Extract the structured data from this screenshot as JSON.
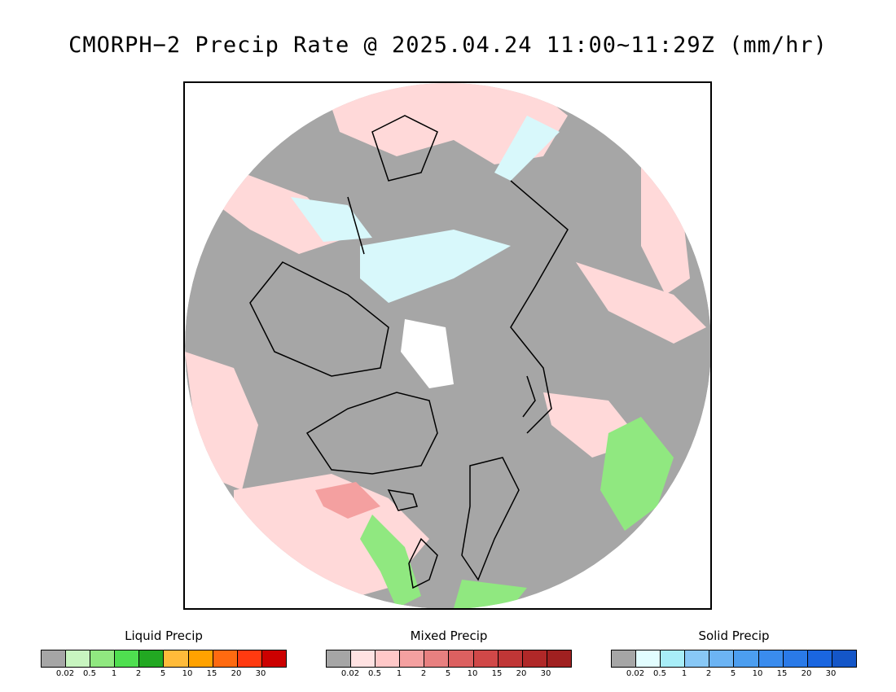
{
  "title": "CMORPH−2 Precip Rate @ 2025.04.24 11:00~11:29Z (mm/hr)",
  "legends": [
    {
      "title": "Liquid Precip",
      "colors": [
        "#a6a6a6",
        "#c8f5c0",
        "#90e880",
        "#4fdf50",
        "#22a822",
        "#ffbb3a",
        "#ffa200",
        "#ff6a10",
        "#ff3a10",
        "#cc0000"
      ],
      "ticks": [
        "0.02",
        "0.5",
        "1",
        "2",
        "5",
        "10",
        "15",
        "20",
        "30"
      ]
    },
    {
      "title": "Mixed Precip",
      "colors": [
        "#a6a6a6",
        "#ffe2e2",
        "#ffc8c8",
        "#f4a0a0",
        "#e88080",
        "#dc6060",
        "#d04848",
        "#c03636",
        "#b02828",
        "#a02020"
      ],
      "ticks": [
        "0.02",
        "0.5",
        "1",
        "2",
        "5",
        "10",
        "15",
        "20",
        "30"
      ]
    },
    {
      "title": "Solid Precip",
      "colors": [
        "#a6a6a6",
        "#e2fdff",
        "#a8eef8",
        "#88c8f6",
        "#6cb4f4",
        "#4c9ef0",
        "#3a8cee",
        "#2a7ae8",
        "#1a66e0",
        "#1456c8"
      ],
      "ticks": [
        "0.02",
        "0.5",
        "1",
        "2",
        "5",
        "10",
        "15",
        "20",
        "30"
      ]
    }
  ]
}
